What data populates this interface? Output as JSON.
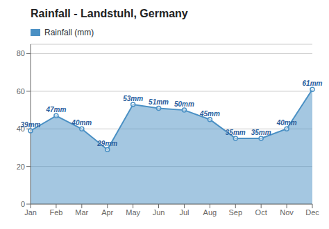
{
  "chart_data": {
    "type": "area",
    "title": "Rainfall - Landstuhl, Germany",
    "categories": [
      "Jan",
      "Feb",
      "Mar",
      "Apr",
      "May",
      "Jun",
      "Jul",
      "Aug",
      "Sep",
      "Oct",
      "Nov",
      "Dec"
    ],
    "series": [
      {
        "name": "Rainfall (mm)",
        "color": "#4a90c4",
        "values": [
          39,
          47,
          40,
          29,
          53,
          51,
          50,
          45,
          35,
          35,
          40,
          61
        ],
        "value_labels": [
          "39mm",
          "47mm",
          "40mm",
          "29mm",
          "53mm",
          "51mm",
          "50mm",
          "45mm",
          "35mm",
          "35mm",
          "40mm",
          "61mm"
        ]
      }
    ],
    "ylim": [
      0,
      85
    ],
    "yticks": [
      0,
      20,
      40,
      60,
      80
    ],
    "grid": true,
    "legend": "upper left",
    "data_labels": true
  }
}
